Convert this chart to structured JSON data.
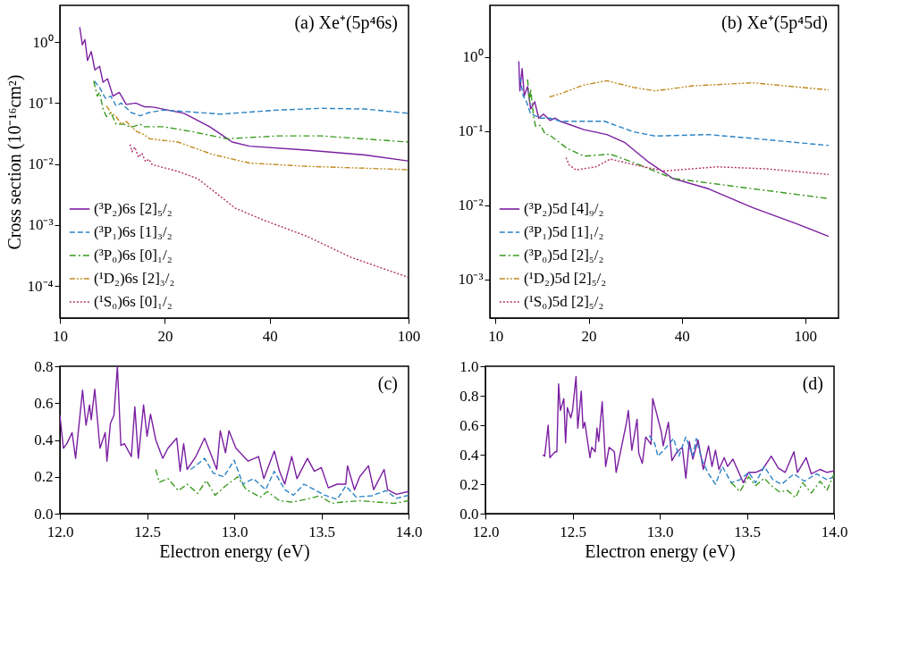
{
  "chart_data": [
    {
      "type": "line",
      "ylabel": "Cross section (10⁻¹⁶cm²)",
      "annotations": [
        "(a) Xe⁺(5p⁴6s)"
      ],
      "log": "xy",
      "legend": "bottom left",
      "xlim": [
        10,
        100
      ],
      "xticks": [
        10,
        20,
        40,
        100
      ],
      "ylim": [
        3e-05,
        4
      ],
      "yticks": [
        {
          "value": 1,
          "label": "10⁰"
        },
        {
          "value": 0.1,
          "label": "10⁻¹"
        },
        {
          "value": 0.01,
          "label": "10⁻²"
        },
        {
          "value": 0.001,
          "label": "10⁻³"
        },
        {
          "value": 0.0001,
          "label": "10⁻⁴"
        }
      ],
      "series": [
        {
          "name": "(³P₂)6s [2]₅/₂",
          "color": "#7a1ea1",
          "line_style": "solid",
          "x": [
            11.4,
            11.6,
            11.8,
            12.0,
            12.3,
            12.6,
            13.0,
            13.3,
            13.7,
            14.2,
            14.8,
            15.5,
            16.5,
            17.5,
            18.5,
            22.7,
            26.9,
            31.2,
            35,
            51,
            75,
            99.6
          ],
          "values": [
            1.76,
            0.9,
            1.1,
            0.5,
            0.7,
            0.35,
            0.4,
            0.22,
            0.25,
            0.13,
            0.15,
            0.095,
            0.1,
            0.087,
            0.086,
            0.068,
            0.041,
            0.023,
            0.0197,
            0.017,
            0.0141,
            0.0113
          ]
        },
        {
          "name": "(³P₁)6s [1]₃/₂",
          "color": "#2b83c6",
          "line_style": "dashed",
          "x": [
            12.55,
            13,
            13.5,
            14,
            14.5,
            15,
            16,
            17,
            18,
            19.8,
            29,
            42.4,
            56.4,
            75,
            100
          ],
          "values": [
            0.23,
            0.18,
            0.12,
            0.13,
            0.09,
            0.1,
            0.07,
            0.062,
            0.07,
            0.077,
            0.066,
            0.077,
            0.082,
            0.08,
            0.068
          ]
        },
        {
          "name": "(³P₀)6s [0]₁/₂",
          "color": "#3a9a1f",
          "line_style": "dashdot",
          "x": [
            12.5,
            12.8,
            13.0,
            13.3,
            13.6,
            14,
            14.5,
            15.3,
            16,
            17,
            17.4,
            19.8,
            24,
            30.1,
            42.4,
            56,
            100
          ],
          "values": [
            0.23,
            0.13,
            0.15,
            0.08,
            0.06,
            0.07,
            0.045,
            0.045,
            0.04,
            0.045,
            0.041,
            0.041,
            0.034,
            0.026,
            0.029,
            0.029,
            0.023
          ]
        },
        {
          "name": "(¹D₂)6s [2]₃/₂",
          "color": "#c08a1e",
          "line_style": "dashdotdot",
          "x": [
            13.6,
            14,
            14.5,
            15,
            15.5,
            16.5,
            17.5,
            18.1,
            21.8,
            27.3,
            35,
            51,
            100
          ],
          "values": [
            0.09,
            0.07,
            0.06,
            0.045,
            0.05,
            0.035,
            0.03,
            0.026,
            0.023,
            0.0145,
            0.0104,
            0.0092,
            0.0081
          ]
        },
        {
          "name": "(¹S₀)6s [0]₁/₂",
          "color": "#b3306a",
          "line_style": "dotted",
          "x": [
            15.9,
            16.1,
            16.4,
            16.8,
            17.2,
            17.6,
            18,
            18.4,
            21.8,
            24.8,
            27.8,
            31.8,
            38.5,
            51,
            68,
            99.6
          ],
          "values": [
            0.021,
            0.016,
            0.019,
            0.013,
            0.015,
            0.011,
            0.012,
            0.0098,
            0.0076,
            0.0058,
            0.0035,
            0.0019,
            0.0012,
            0.00066,
            0.0003,
            0.00014
          ]
        }
      ]
    },
    {
      "type": "line",
      "annotations": [
        "(b) Xe⁺(5p⁴5d)"
      ],
      "log": "xy",
      "legend": "bottom left",
      "xlim": [
        9.6,
        128
      ],
      "xticks": [
        10,
        20,
        40,
        100
      ],
      "ylim": [
        0.0003,
        5
      ],
      "yticks": [
        {
          "value": 1,
          "label": "10⁰"
        },
        {
          "value": 0.1,
          "label": "10⁻¹"
        },
        {
          "value": 0.01,
          "label": "10⁻²"
        },
        {
          "value": 0.001,
          "label": "10⁻³"
        }
      ],
      "series": [
        {
          "name": "(³P₂)5d [4]₉/₂",
          "color": "#7a1ea1",
          "line_style": "solid",
          "x": [
            11.9,
            12.0,
            12.2,
            12.4,
            12.7,
            13.0,
            13.4,
            13.8,
            14.3,
            15,
            15.6,
            16.2,
            19.3,
            22.9,
            26.2,
            31.3,
            37.4,
            48.7,
            67.6,
            94,
            119
          ],
          "values": [
            0.88,
            0.35,
            0.7,
            0.3,
            0.4,
            0.2,
            0.25,
            0.15,
            0.17,
            0.14,
            0.15,
            0.136,
            0.105,
            0.09,
            0.07,
            0.038,
            0.023,
            0.0167,
            0.0093,
            0.0056,
            0.0038
          ]
        },
        {
          "name": "(³P₁)5d [1]₁/₂",
          "color": "#2b83c6",
          "line_style": "dashed",
          "x": [
            12.0,
            12.3,
            12.6,
            13,
            13.5,
            14,
            15,
            16.2,
            22.5,
            27.9,
            32.8,
            48.7,
            67.6,
            119
          ],
          "values": [
            0.53,
            0.3,
            0.25,
            0.17,
            0.16,
            0.15,
            0.15,
            0.136,
            0.136,
            0.098,
            0.086,
            0.09,
            0.08,
            0.064
          ]
        },
        {
          "name": "(³P₀)5d [2]₅/₂",
          "color": "#3a9a1f",
          "line_style": "dashdot",
          "x": [
            12.7,
            12.9,
            13.0,
            13.3,
            13.5,
            14,
            14.5,
            14.9,
            17.0,
            19.3,
            23.5,
            28.7,
            37.4,
            48.7,
            67.6,
            119
          ],
          "values": [
            0.5,
            0.25,
            0.37,
            0.15,
            0.116,
            0.12,
            0.09,
            0.09,
            0.059,
            0.046,
            0.049,
            0.036,
            0.023,
            0.02,
            0.0167,
            0.0123
          ]
        },
        {
          "name": "(¹D₂)5d [2]₅/₂",
          "color": "#c08a1e",
          "line_style": "dashdotdot",
          "x": [
            14.95,
            16.2,
            19.3,
            22.9,
            27.9,
            32.8,
            43.6,
            67.6,
            119
          ],
          "values": [
            0.29,
            0.32,
            0.42,
            0.48,
            0.39,
            0.35,
            0.41,
            0.45,
            0.36
          ]
        },
        {
          "name": "(¹S₀)5d [2]₅/₂",
          "color": "#b3306a",
          "line_style": "dotted",
          "x": [
            16.9,
            17.3,
            18.2,
            21.1,
            23.5,
            27.4,
            35.0,
            52,
            75,
            119
          ],
          "values": [
            0.044,
            0.035,
            0.03,
            0.033,
            0.042,
            0.036,
            0.029,
            0.033,
            0.031,
            0.026
          ]
        }
      ]
    },
    {
      "type": "line",
      "xlabel": "Electron energy (eV)",
      "annotations": [
        "(c)"
      ],
      "xlim": [
        12,
        14
      ],
      "xticks": [
        {
          "value": 12,
          "label": "12.0"
        },
        12.5,
        {
          "value": 13,
          "label": "13.0"
        },
        13.5,
        {
          "value": 14,
          "label": "14.0"
        }
      ],
      "ylim": [
        0,
        0.8
      ],
      "yticks": [
        {
          "value": 0,
          "label": "0.0"
        },
        0.2,
        0.4,
        0.6,
        0.8
      ],
      "series": [
        {
          "color": "#7a1ea1",
          "line_style": "solid",
          "x": [
            12.0,
            12.02,
            12.04,
            12.07,
            12.09,
            12.13,
            12.15,
            12.17,
            12.18,
            12.2,
            12.23,
            12.26,
            12.27,
            12.29,
            12.31,
            12.33,
            12.35,
            12.37,
            12.41,
            12.43,
            12.45,
            12.48,
            12.5,
            12.52,
            12.55,
            12.59,
            12.62,
            12.67,
            12.69,
            12.71,
            12.73,
            12.78,
            12.83,
            12.9,
            12.92,
            12.95,
            12.97,
            13.01,
            13.08,
            13.14,
            13.17,
            13.23,
            13.26,
            13.29,
            13.33,
            13.36,
            13.42,
            13.46,
            13.5,
            13.54,
            13.59,
            13.64,
            13.65,
            13.69,
            13.72,
            13.77,
            13.8,
            13.86,
            13.88,
            13.93,
            14.0
          ],
          "values": [
            0.536,
            0.355,
            0.38,
            0.44,
            0.3,
            0.67,
            0.48,
            0.59,
            0.51,
            0.675,
            0.355,
            0.44,
            0.285,
            0.49,
            0.535,
            0.8,
            0.37,
            0.38,
            0.31,
            0.58,
            0.3,
            0.59,
            0.42,
            0.54,
            0.4,
            0.3,
            0.355,
            0.41,
            0.23,
            0.38,
            0.24,
            0.31,
            0.41,
            0.24,
            0.45,
            0.33,
            0.45,
            0.355,
            0.285,
            0.31,
            0.19,
            0.34,
            0.23,
            0.16,
            0.31,
            0.19,
            0.3,
            0.23,
            0.25,
            0.14,
            0.16,
            0.16,
            0.26,
            0.13,
            0.2,
            0.26,
            0.13,
            0.24,
            0.13,
            0.105,
            0.12
          ]
        },
        {
          "color": "#2b83c6",
          "line_style": "dashed",
          "x": [
            12.75,
            12.78,
            12.83,
            12.88,
            12.94,
            13.0,
            13.05,
            13.11,
            13.18,
            13.23,
            13.29,
            13.34,
            13.4,
            13.46,
            13.52,
            13.59,
            13.64,
            13.7,
            13.79,
            13.87,
            13.93,
            14.0
          ],
          "values": [
            0.24,
            0.26,
            0.3,
            0.22,
            0.2,
            0.29,
            0.16,
            0.19,
            0.13,
            0.23,
            0.13,
            0.1,
            0.16,
            0.13,
            0.1,
            0.077,
            0.15,
            0.09,
            0.097,
            0.125,
            0.083,
            0.1
          ]
        },
        {
          "color": "#3a9a1f",
          "line_style": "dashdot",
          "x": [
            12.55,
            12.57,
            12.62,
            12.68,
            12.73,
            12.79,
            12.84,
            12.89,
            12.95,
            13.02,
            13.07,
            13.15,
            13.19,
            13.26,
            13.33,
            13.41,
            13.49,
            13.56,
            13.62,
            13.72,
            13.82,
            13.92,
            14.0
          ],
          "values": [
            0.24,
            0.17,
            0.19,
            0.125,
            0.16,
            0.11,
            0.18,
            0.1,
            0.15,
            0.2,
            0.13,
            0.09,
            0.12,
            0.07,
            0.063,
            0.077,
            0.097,
            0.056,
            0.063,
            0.07,
            0.063,
            0.056,
            0.07
          ]
        }
      ]
    },
    {
      "type": "line",
      "xlabel": "Electron energy (eV)",
      "annotations": [
        "(d)"
      ],
      "xlim": [
        12,
        14
      ],
      "xticks": [
        {
          "value": 12,
          "label": "12.0"
        },
        12.5,
        {
          "value": 13,
          "label": "13.0"
        },
        13.5,
        {
          "value": 14,
          "label": "14.0"
        }
      ],
      "ylim": [
        0,
        1
      ],
      "yticks": [
        {
          "value": 0,
          "label": "0.0"
        },
        0.2,
        0.4,
        0.6,
        0.8,
        {
          "value": 1,
          "label": "1.0"
        }
      ],
      "series": [
        {
          "color": "#7a1ea1",
          "line_style": "solid",
          "x": [
            12.33,
            12.34,
            12.36,
            12.37,
            12.4,
            12.41,
            12.42,
            12.43,
            12.45,
            12.46,
            12.47,
            12.49,
            12.5,
            12.52,
            12.53,
            12.55,
            12.56,
            12.57,
            12.6,
            12.61,
            12.63,
            12.64,
            12.65,
            12.67,
            12.69,
            12.71,
            12.74,
            12.75,
            12.77,
            12.81,
            12.82,
            12.84,
            12.87,
            12.88,
            12.9,
            12.92,
            12.95,
            12.96,
            12.98,
            13.01,
            13.02,
            13.05,
            13.07,
            13.1,
            13.13,
            13.15,
            13.17,
            13.19,
            13.22,
            13.25,
            13.28,
            13.3,
            13.32,
            13.34,
            13.37,
            13.39,
            13.42,
            13.48,
            13.51,
            13.55,
            13.59,
            13.64,
            13.68,
            13.72,
            13.77,
            13.79,
            13.84,
            13.87,
            13.92,
            13.96,
            14.0
          ],
          "values": [
            0.4,
            0.39,
            0.6,
            0.38,
            0.42,
            0.42,
            0.88,
            0.7,
            0.78,
            0.48,
            0.72,
            0.65,
            0.7,
            0.93,
            0.58,
            0.83,
            0.58,
            0.62,
            0.38,
            0.45,
            0.42,
            0.58,
            0.49,
            0.76,
            0.32,
            0.45,
            0.42,
            0.28,
            0.39,
            0.62,
            0.7,
            0.43,
            0.64,
            0.41,
            0.34,
            0.52,
            0.47,
            0.78,
            0.69,
            0.55,
            0.46,
            0.62,
            0.36,
            0.42,
            0.45,
            0.24,
            0.49,
            0.37,
            0.5,
            0.3,
            0.46,
            0.32,
            0.43,
            0.3,
            0.38,
            0.32,
            0.37,
            0.21,
            0.28,
            0.28,
            0.3,
            0.39,
            0.31,
            0.28,
            0.42,
            0.28,
            0.38,
            0.27,
            0.3,
            0.28,
            0.29
          ]
        },
        {
          "color": "#2b83c6",
          "line_style": "dashed",
          "x": [
            12.94,
            12.97,
            12.99,
            13.03,
            13.08,
            13.11,
            13.15,
            13.19,
            13.21,
            13.24,
            13.28,
            13.32,
            13.36,
            13.41,
            13.46,
            13.51,
            13.55,
            13.6,
            13.65,
            13.7,
            13.77,
            13.83,
            13.9,
            13.96,
            14.0
          ],
          "values": [
            0.53,
            0.48,
            0.39,
            0.44,
            0.51,
            0.39,
            0.52,
            0.39,
            0.51,
            0.37,
            0.27,
            0.2,
            0.32,
            0.21,
            0.23,
            0.28,
            0.21,
            0.32,
            0.23,
            0.2,
            0.27,
            0.22,
            0.27,
            0.23,
            0.25
          ]
        },
        {
          "color": "#3a9a1f",
          "line_style": "dashdot",
          "x": [
            13.41,
            13.46,
            13.51,
            13.55,
            13.6,
            13.64,
            13.69,
            13.73,
            13.78,
            13.82,
            13.87,
            13.92,
            13.96,
            14.0
          ],
          "values": [
            0.21,
            0.15,
            0.25,
            0.19,
            0.24,
            0.19,
            0.145,
            0.16,
            0.11,
            0.21,
            0.14,
            0.22,
            0.16,
            0.27
          ]
        }
      ]
    }
  ]
}
